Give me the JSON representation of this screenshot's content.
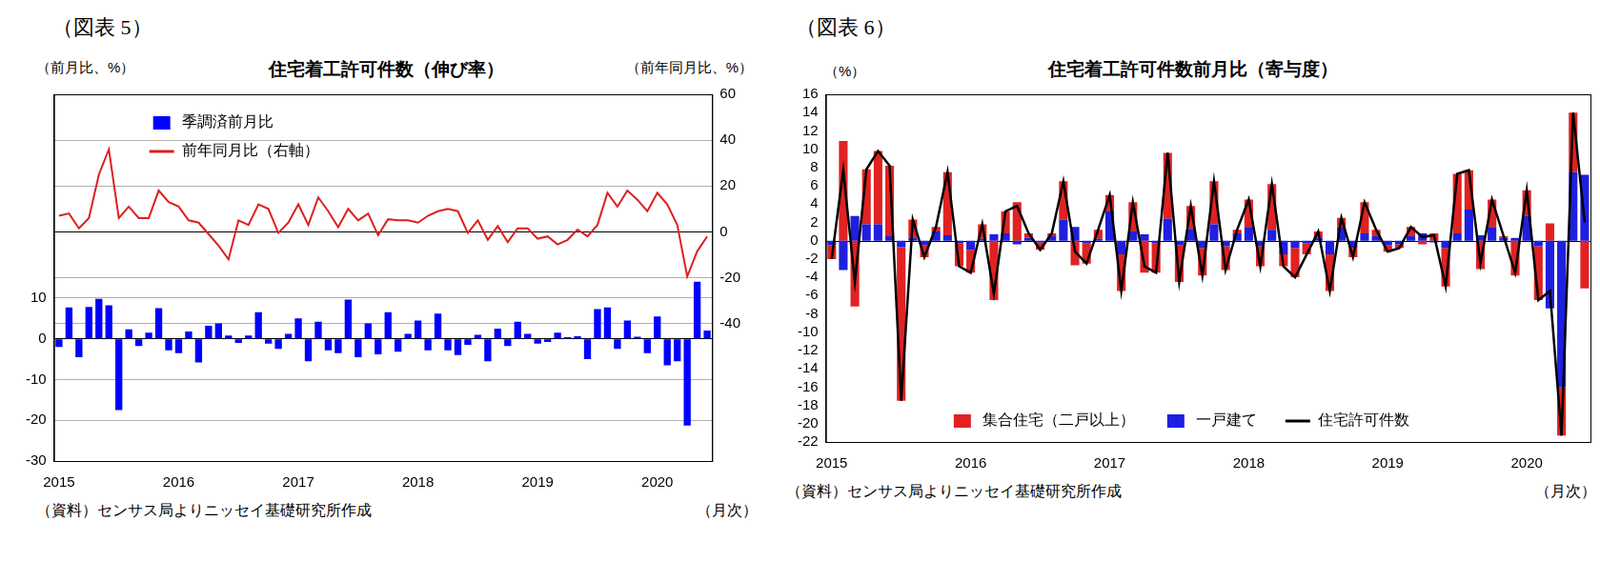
{
  "chart_data": [
    {
      "type": "bar",
      "heading": "（図表 5）",
      "title": "住宅着工許可件数（伸び率）",
      "y_label": "（前月比、%）",
      "y2_label": "（前年同月比、%）",
      "x_label": "（月次）",
      "source": "（資料）センサス局よりニッセイ基礎研究所作成",
      "categories": [
        "2015",
        null,
        null,
        null,
        null,
        null,
        null,
        null,
        null,
        null,
        null,
        null,
        "2016",
        null,
        null,
        null,
        null,
        null,
        null,
        null,
        null,
        null,
        null,
        null,
        "2017",
        null,
        null,
        null,
        null,
        null,
        null,
        null,
        null,
        null,
        null,
        null,
        "2018",
        null,
        null,
        null,
        null,
        null,
        null,
        null,
        null,
        null,
        null,
        null,
        "2019",
        null,
        null,
        null,
        null,
        null,
        null,
        null,
        null,
        null,
        null,
        null,
        "2020",
        null,
        null,
        null,
        null,
        null
      ],
      "series": [
        {
          "name": "季調済前月比",
          "type": "bar",
          "color": "#0000ff",
          "values": [
            -2,
            7.7,
            -4.5,
            7.8,
            9.8,
            8.2,
            -17.5,
            2.3,
            -1.8,
            1.5,
            7.5,
            -2.8,
            -3.5,
            1.8,
            -5.8,
            3.2,
            3.8,
            0.8,
            -1,
            0.8,
            6.5,
            -1.2,
            -2.5,
            1.2,
            5,
            -5.5,
            4.2,
            -2.8,
            -3.5,
            9.6,
            -4.5,
            3.8,
            -3.8,
            6.5,
            -3.2,
            1.2,
            4.5,
            -2.8,
            6.2,
            -2.8,
            -4,
            -1.5,
            1,
            -5.5,
            2.5,
            -1.8,
            4.2,
            1.2,
            -1.2,
            -0.8,
            1.5,
            0.4,
            0.6,
            -5,
            7.3,
            7.7,
            -2.5,
            4.5,
            0.5,
            -3.5,
            5.5,
            -6.5,
            -5.5,
            -21.3,
            14,
            2
          ]
        },
        {
          "name": "前年同月比（右軸）",
          "type": "line",
          "color": "#dd1f1f",
          "axis": "y2",
          "values": [
            7,
            8,
            1.5,
            6,
            25,
            36,
            6,
            11,
            6,
            6,
            18,
            13,
            11,
            5,
            4,
            -1,
            -6,
            -12,
            5,
            3,
            12,
            10,
            -0.5,
            4,
            12,
            3,
            15,
            9,
            2,
            10,
            5,
            8,
            -1.5,
            5.5,
            5,
            5,
            4,
            7,
            9,
            10,
            9,
            -0.5,
            5,
            -3.5,
            2.5,
            -4.5,
            1.5,
            1.5,
            -3,
            -2,
            -5.5,
            -3.5,
            1,
            -2,
            3,
            17,
            11,
            18,
            14,
            9,
            17,
            12,
            3,
            -19.5,
            -8.5,
            -2
          ]
        }
      ],
      "ylim": [
        -30,
        60
      ],
      "yticks": [
        -30,
        -20,
        -10,
        0,
        10
      ],
      "y2lim": [
        -100,
        60
      ],
      "y2ticks": [
        -40,
        -20,
        0,
        20,
        40,
        60
      ],
      "grid": true,
      "legend": "upper left"
    },
    {
      "type": "bar",
      "heading": "（図表 6）",
      "title": "住宅着工許可件数前月比（寄与度）",
      "y_label": "（%）",
      "x_label": "（月次）",
      "source": "（資料）センサス局よりニッセイ基礎研究所作成",
      "stacked": true,
      "categories": [
        "2015",
        null,
        null,
        null,
        null,
        null,
        null,
        null,
        null,
        null,
        null,
        null,
        "2016",
        null,
        null,
        null,
        null,
        null,
        null,
        null,
        null,
        null,
        null,
        null,
        "2017",
        null,
        null,
        null,
        null,
        null,
        null,
        null,
        null,
        null,
        null,
        null,
        "2018",
        null,
        null,
        null,
        null,
        null,
        null,
        null,
        null,
        null,
        null,
        null,
        "2019",
        null,
        null,
        null,
        null,
        null,
        null,
        null,
        null,
        null,
        null,
        null,
        "2020",
        null,
        null,
        null,
        null,
        null
      ],
      "series": [
        {
          "name": "集合住宅（二戸以上）",
          "type": "bar",
          "color": "#e02222",
          "values": [
            -1.5,
            10.9,
            -7.2,
            6.0,
            8.0,
            7.7,
            -16.8,
            2.0,
            -1.3,
            0.5,
            6.9,
            -2.5,
            -2.5,
            1.6,
            -6.5,
            2.4,
            4.2,
            0.5,
            -0.8,
            0.3,
            4.2,
            -2.7,
            -2.2,
            1.0,
            1.8,
            -4.0,
            3.2,
            -3.5,
            -3.2,
            7.2,
            -4.0,
            2.5,
            -3.0,
            4.7,
            -2.6,
            0.4,
            3.0,
            -2.2,
            5.0,
            -1.3,
            -3.2,
            -1.2,
            0.7,
            -4.0,
            1.0,
            -1.0,
            3.4,
            0.7,
            -0.7,
            -0.4,
            1.0,
            -0.4,
            0.8,
            -4.2,
            6.5,
            4.3,
            -3.1,
            3.0,
            0.2,
            -3.8,
            2.8,
            -5.9,
            1.9,
            -5.3,
            6.5,
            -5.2
          ]
        },
        {
          "name": "一戸建て",
          "type": "bar",
          "color": "#1f1fe0",
          "values": [
            -0.5,
            -3.2,
            2.7,
            1.8,
            1.8,
            0.5,
            -0.7,
            0.3,
            -0.5,
            1.0,
            0.6,
            -0.3,
            -1.0,
            0.2,
            0.7,
            0.8,
            -0.4,
            0.3,
            -0.2,
            0.5,
            2.3,
            1.5,
            -0.3,
            0.2,
            3.2,
            -1.5,
            1.0,
            0.7,
            -0.3,
            2.4,
            -0.5,
            1.3,
            -0.8,
            1.8,
            -0.6,
            0.8,
            1.5,
            -0.6,
            1.2,
            -1.5,
            -0.8,
            -0.3,
            0.3,
            -1.5,
            1.5,
            -0.8,
            0.8,
            0.5,
            -0.5,
            -0.4,
            0.5,
            0.8,
            -0.2,
            -0.8,
            0.8,
            3.4,
            0.6,
            1.5,
            0.3,
            0.3,
            2.7,
            -0.6,
            -7.4,
            -16.0,
            7.5,
            7.2
          ]
        },
        {
          "name": "住宅許可件数",
          "type": "line",
          "color": "#000000",
          "values": [
            -2,
            7.7,
            -4.5,
            7.8,
            9.8,
            8.2,
            -17.5,
            2.3,
            -1.8,
            1.5,
            7.5,
            -2.8,
            -3.5,
            1.8,
            -5.8,
            3.2,
            3.8,
            0.8,
            -1,
            0.8,
            6.5,
            -1.2,
            -2.5,
            1.2,
            5,
            -5.5,
            4.2,
            -2.8,
            -3.5,
            9.6,
            -4.5,
            3.8,
            -3.8,
            6.5,
            -3.2,
            1.2,
            4.5,
            -2.8,
            6.2,
            -2.8,
            -4,
            -1.5,
            1,
            -5.5,
            2.5,
            -1.8,
            4.2,
            1.2,
            -1.2,
            -0.8,
            1.5,
            0.4,
            0.6,
            -5,
            7.3,
            7.7,
            -2.5,
            4.5,
            0.5,
            -3.5,
            5.5,
            -6.5,
            -5.5,
            -21.3,
            14,
            2
          ]
        }
      ],
      "ylim": [
        -22,
        16
      ],
      "yticks": [
        -22,
        -20,
        -18,
        -16,
        -14,
        -12,
        -10,
        -8,
        -6,
        -4,
        -2,
        0,
        2,
        4,
        6,
        8,
        10,
        12,
        14,
        16
      ],
      "grid": false,
      "legend": "lower center"
    }
  ]
}
